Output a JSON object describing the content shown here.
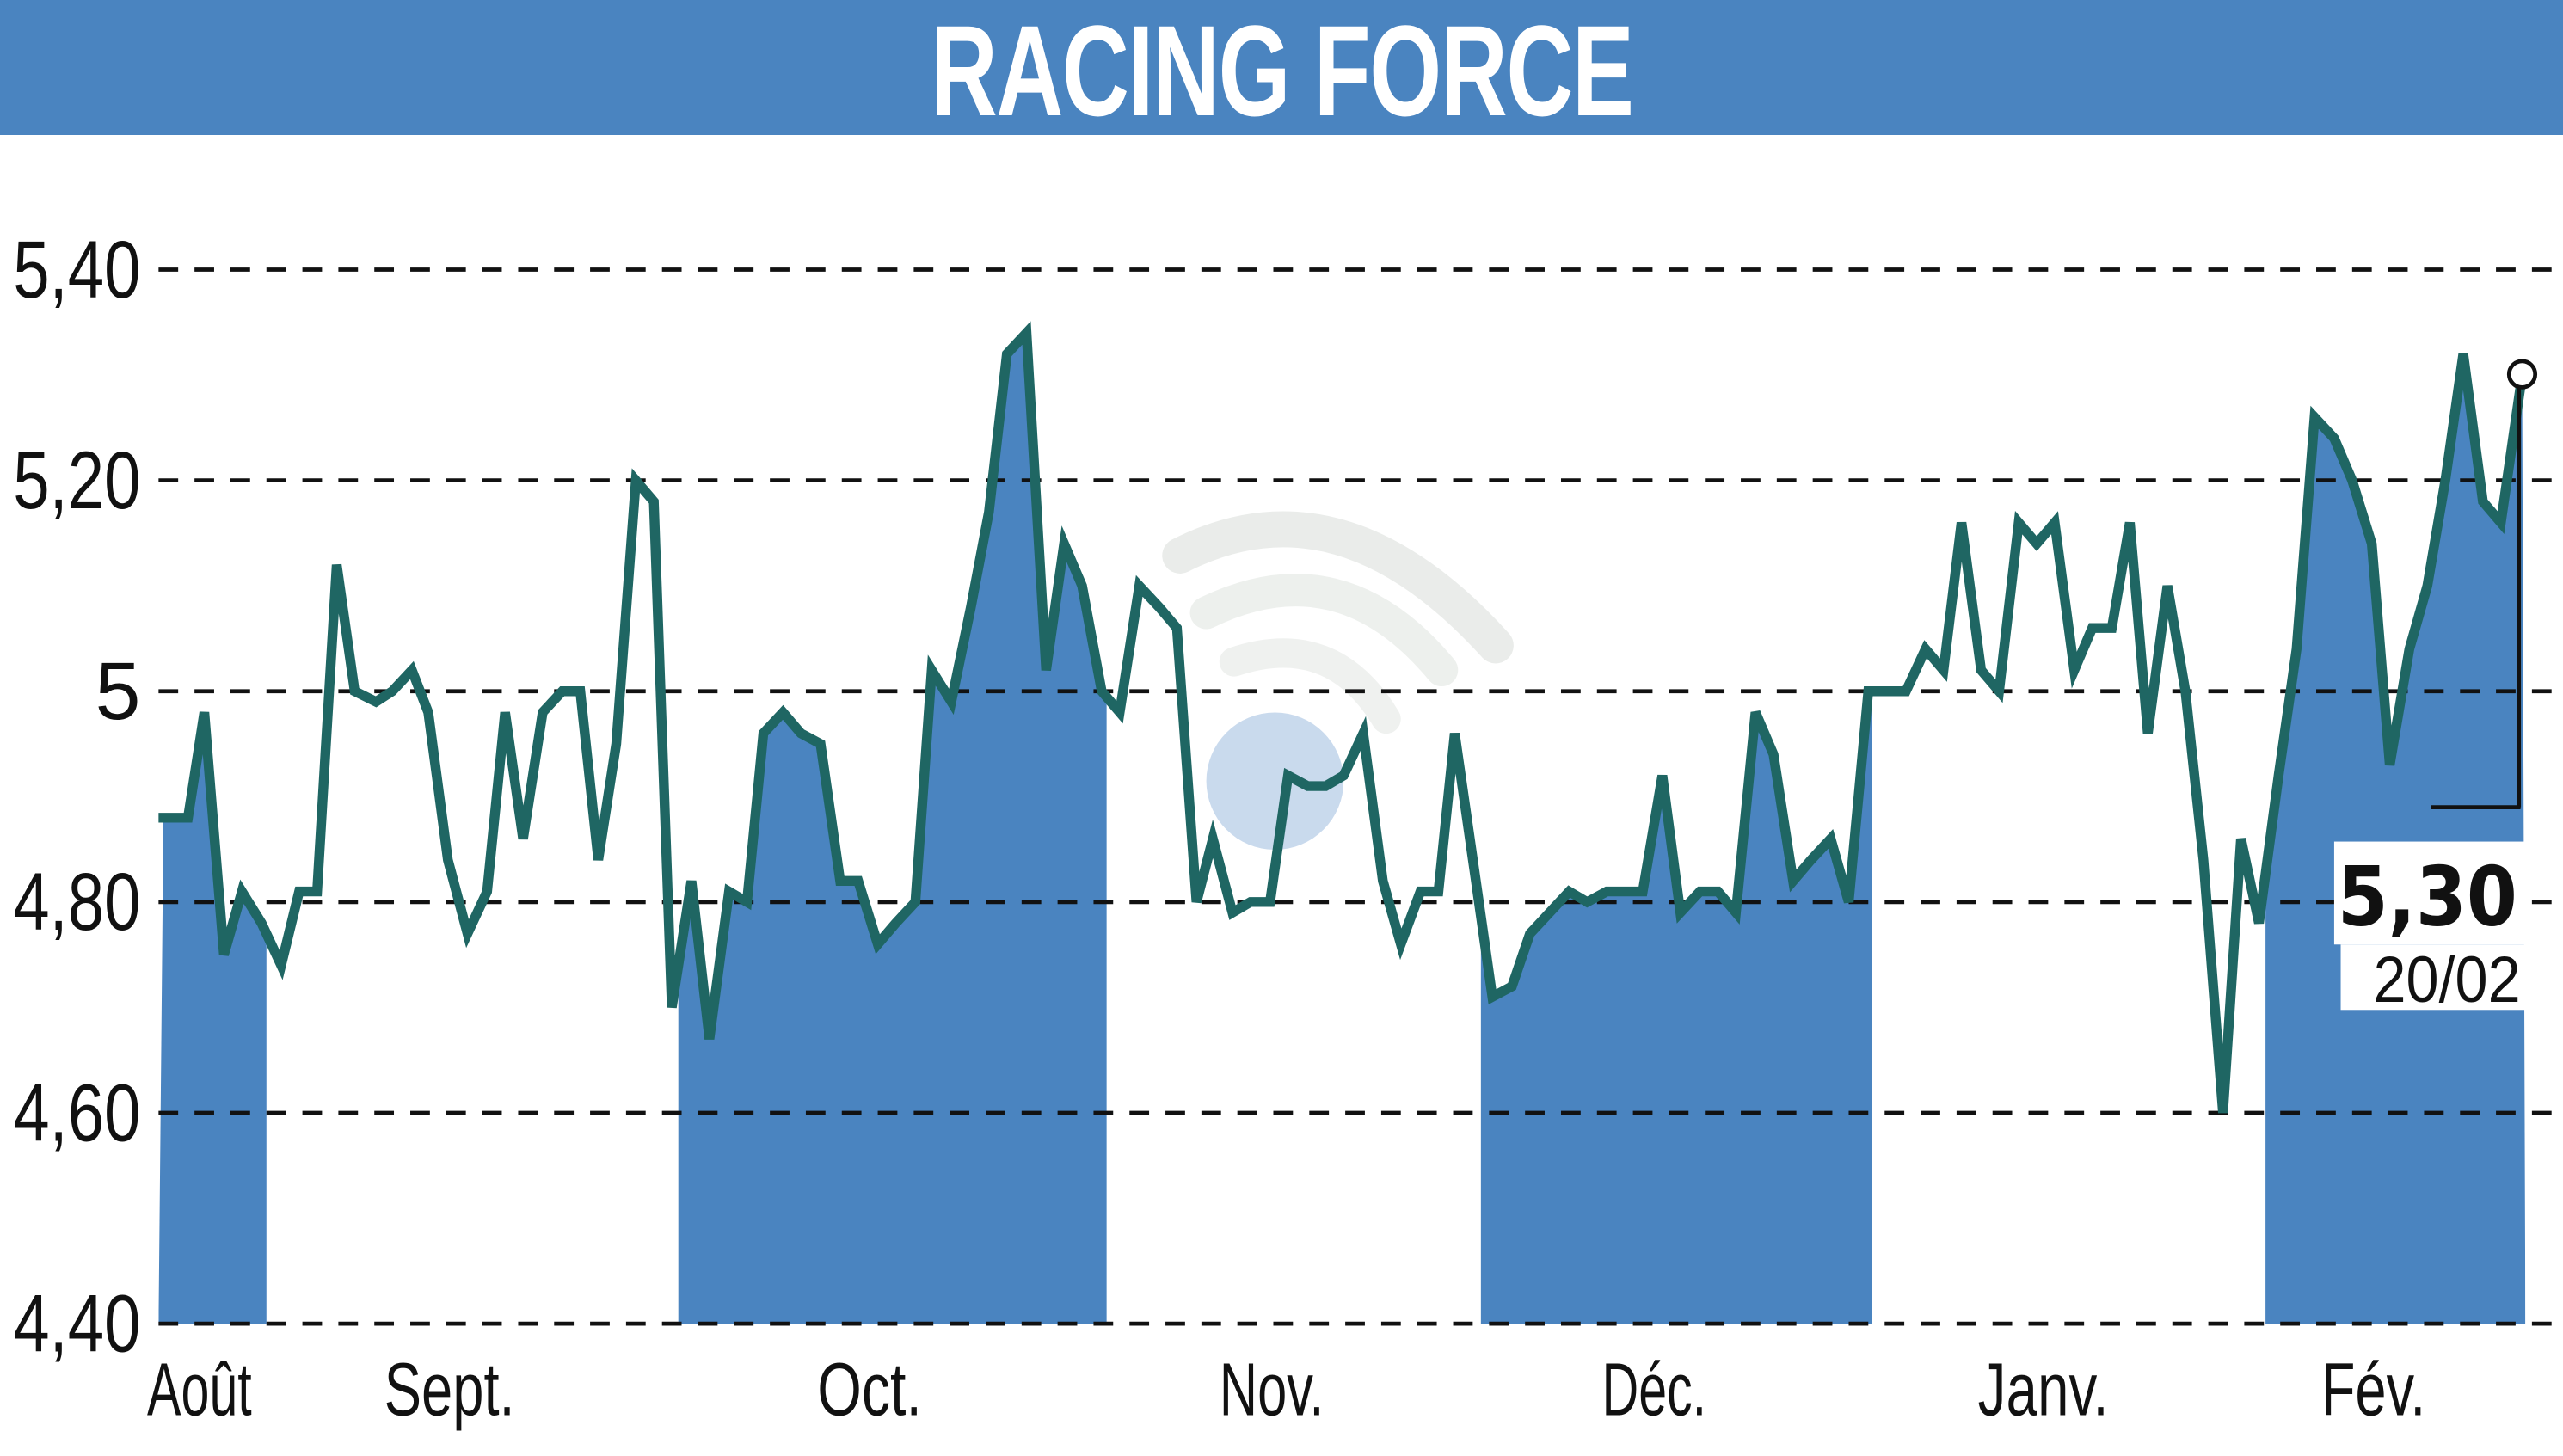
{
  "header": {
    "title": "RACING FORCE"
  },
  "colors": {
    "title_bar": "#4a84c0",
    "band_fill": "#4a84c0",
    "line": "#1f6663",
    "grid": "#111111",
    "watermark_arcs": "#e6ebe6",
    "watermark_dot": "#bcd0e8"
  },
  "last_point": {
    "value": "5,30",
    "date": "20/02"
  },
  "chart_data": {
    "type": "line",
    "title": "RACING FORCE",
    "xlabel": "",
    "ylabel": "",
    "ylim": [
      4.4,
      5.4
    ],
    "yticks": [
      {
        "value": 5.4,
        "label": "5,40"
      },
      {
        "value": 5.2,
        "label": "5,20"
      },
      {
        "value": 5.0,
        "label": "5"
      },
      {
        "value": 4.8,
        "label": "4,80"
      },
      {
        "value": 4.6,
        "label": "4,60"
      },
      {
        "value": 4.4,
        "label": "4,40"
      }
    ],
    "grid": "horizontal dashed",
    "months": [
      {
        "label": "Août",
        "label_x": 122,
        "band": [
          97,
          163
        ]
      },
      {
        "label": "Sept.",
        "label_x": 275,
        "band": null
      },
      {
        "label": "Oct.",
        "label_x": 532,
        "band": [
          415,
          677
        ]
      },
      {
        "label": "Nov.",
        "label_x": 778,
        "band": null
      },
      {
        "label": "Déc.",
        "label_x": 1012,
        "band": [
          906,
          1145
        ]
      },
      {
        "label": "Janv.",
        "label_x": 1250,
        "band": null
      },
      {
        "label": "Fév.",
        "label_x": 1452,
        "band": [
          1386,
          1545
        ]
      }
    ],
    "series": [
      {
        "name": "Racing Force",
        "x": [
          100,
          115,
          125,
          137,
          148,
          160,
          172,
          183,
          194,
          206,
          217,
          230,
          240,
          252,
          262,
          274,
          286,
          298,
          309,
          320,
          332,
          344,
          355,
          366,
          377,
          389,
          400,
          411,
          423,
          434,
          446,
          457,
          467,
          479,
          490,
          502,
          514,
          525,
          537,
          548,
          560,
          570,
          582,
          594,
          605,
          616,
          628,
          640,
          651,
          662,
          674,
          685,
          697,
          709,
          720,
          732,
          742,
          754,
          765,
          777,
          788,
          800,
          811,
          822,
          834,
          846,
          857,
          869,
          880,
          890,
          902,
          913,
          925,
          936,
          948,
          960,
          971,
          983,
          994,
          1005,
          1017,
          1028,
          1040,
          1051,
          1062,
          1074,
          1085,
          1097,
          1108,
          1120,
          1131,
          1143,
          1155,
          1166,
          1178,
          1189,
          1200,
          1212,
          1223,
          1235,
          1246,
          1257,
          1269,
          1280,
          1292,
          1303,
          1314,
          1326,
          1337,
          1348,
          1360,
          1371,
          1382,
          1394,
          1405,
          1416,
          1428,
          1439,
          1451,
          1462,
          1474,
          1485,
          1496,
          1507,
          1519,
          1530,
          1543
        ],
        "values": [
          4.88,
          4.88,
          4.98,
          4.75,
          4.81,
          4.78,
          4.74,
          4.81,
          4.81,
          5.12,
          5.0,
          4.99,
          5.0,
          5.02,
          4.98,
          4.84,
          4.77,
          4.81,
          4.98,
          4.86,
          4.98,
          5.0,
          5.0,
          4.84,
          4.95,
          5.2,
          5.18,
          4.7,
          4.82,
          4.67,
          4.81,
          4.8,
          4.96,
          4.98,
          4.96,
          4.95,
          4.82,
          4.82,
          4.76,
          4.78,
          4.8,
          5.02,
          4.99,
          5.08,
          5.17,
          5.32,
          5.34,
          5.02,
          5.14,
          5.1,
          5.0,
          4.98,
          5.1,
          5.08,
          5.06,
          4.8,
          4.86,
          4.79,
          4.8,
          4.8,
          4.92,
          4.91,
          4.91,
          4.92,
          4.96,
          4.82,
          4.76,
          4.81,
          4.81,
          4.96,
          4.83,
          4.71,
          4.72,
          4.77,
          4.79,
          4.81,
          4.8,
          4.81,
          4.81,
          4.81,
          4.92,
          4.79,
          4.81,
          4.81,
          4.79,
          4.98,
          4.94,
          4.82,
          4.84,
          4.86,
          4.8,
          5.0,
          5.0,
          5.0,
          5.04,
          5.02,
          5.16,
          5.02,
          5.0,
          5.16,
          5.14,
          5.16,
          5.02,
          5.06,
          5.06,
          5.16,
          4.96,
          5.1,
          5.0,
          4.84,
          4.6,
          4.86,
          4.78,
          4.92,
          5.04,
          5.26,
          5.24,
          5.2,
          5.14,
          4.93,
          5.04,
          5.1,
          5.2,
          5.32,
          5.18,
          5.16,
          5.3
        ]
      }
    ],
    "annotations": [
      {
        "text": "5,30",
        "sub": "20/02",
        "at": "last point"
      }
    ]
  }
}
